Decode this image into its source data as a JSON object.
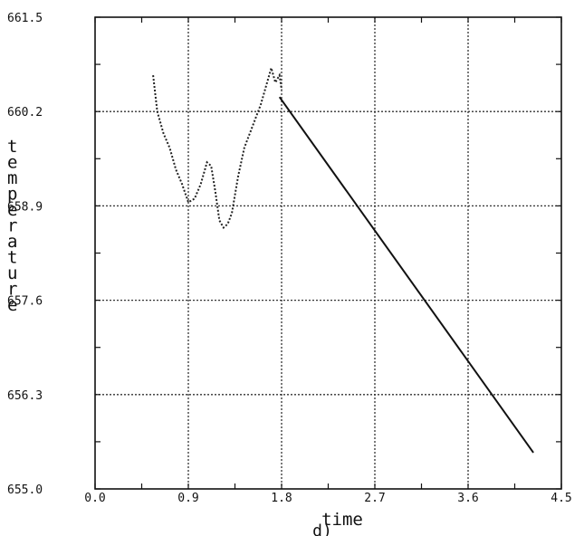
{
  "chart_data": {
    "type": "line",
    "title": "",
    "xlabel": "time",
    "ylabel": "temperature",
    "caption": "d)",
    "xlim": [
      0.0,
      4.5
    ],
    "ylim": [
      655.0,
      661.5
    ],
    "xticks": [
      "0.0",
      "0.9",
      "1.8",
      "2.7",
      "3.6",
      "4.5"
    ],
    "yticks": [
      "655.0",
      "656.3",
      "657.6",
      "658.9",
      "660.2",
      "661.5"
    ],
    "grid": true,
    "series": [
      {
        "style": "dotted",
        "x": [
          0.56,
          0.6,
          0.66,
          0.72,
          0.78,
          0.84,
          0.9,
          0.96,
          1.02,
          1.08,
          1.12,
          1.16,
          1.2,
          1.24,
          1.28,
          1.32,
          1.38,
          1.44,
          1.52,
          1.6,
          1.66,
          1.7,
          1.74,
          1.78,
          1.8
        ],
        "y": [
          660.7,
          660.2,
          659.9,
          659.7,
          659.4,
          659.2,
          658.95,
          659.0,
          659.2,
          659.5,
          659.45,
          659.1,
          658.7,
          658.6,
          658.65,
          658.8,
          659.3,
          659.7,
          660.0,
          660.3,
          660.6,
          660.8,
          660.6,
          660.7,
          660.5
        ]
      },
      {
        "style": "solid",
        "x": [
          1.78,
          4.23
        ],
        "y": [
          660.4,
          655.5
        ]
      }
    ]
  }
}
